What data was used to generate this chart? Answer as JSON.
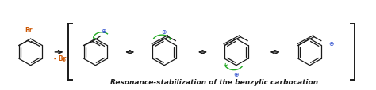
{
  "title": "Resonance-stabilization of the benzylic carbocation",
  "title_fontsize": 6.5,
  "title_fontweight": "bold",
  "bg_color": "#ffffff",
  "line_color": "#1a1a1a",
  "br_color": "#cc5500",
  "plus_color": "#2244cc",
  "green_color": "#22aa22",
  "figsize": [
    4.74,
    1.15
  ],
  "dpi": 100
}
